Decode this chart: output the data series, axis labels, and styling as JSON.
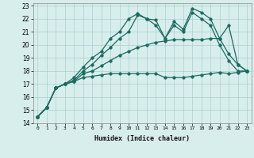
{
  "xlabel": "Humidex (Indice chaleur)",
  "xlim": [
    -0.5,
    23.5
  ],
  "ylim": [
    14,
    23.2
  ],
  "xticks": [
    0,
    1,
    2,
    3,
    4,
    5,
    6,
    7,
    8,
    9,
    10,
    11,
    12,
    13,
    14,
    15,
    16,
    17,
    18,
    19,
    20,
    21,
    22,
    23
  ],
  "yticks": [
    14,
    15,
    16,
    17,
    18,
    19,
    20,
    21,
    22,
    23
  ],
  "bg_color": "#d8eeed",
  "line_color": "#1a6b5e",
  "grid_color": "#aacfcc",
  "series": [
    {
      "x": [
        0,
        1,
        2,
        3,
        4,
        5,
        6,
        7,
        8,
        9,
        10,
        11,
        12,
        13,
        14,
        15,
        16,
        17,
        18,
        19,
        20,
        21,
        22,
        23
      ],
      "y": [
        14.5,
        15.2,
        16.7,
        17.0,
        17.5,
        18.3,
        19.0,
        19.5,
        20.5,
        21.0,
        22.0,
        22.4,
        22.0,
        21.9,
        20.5,
        21.8,
        21.2,
        22.8,
        22.5,
        22.0,
        20.5,
        21.5,
        18.5,
        18.0
      ],
      "marker": "o",
      "markersize": 2.5,
      "linestyle": "-",
      "linewidth": 0.9
    },
    {
      "x": [
        0,
        1,
        2,
        3,
        4,
        5,
        6,
        7,
        8,
        9,
        10,
        11,
        12,
        13,
        14,
        15,
        16,
        17,
        18,
        19,
        20,
        21,
        22,
        23
      ],
      "y": [
        14.5,
        15.2,
        16.7,
        17.0,
        17.3,
        18.0,
        18.5,
        19.2,
        19.8,
        20.5,
        21.0,
        22.3,
        22.0,
        21.5,
        20.5,
        21.5,
        21.0,
        22.5,
        22.0,
        21.5,
        20.0,
        18.8,
        18.0,
        18.0
      ],
      "marker": "o",
      "markersize": 2.5,
      "linestyle": "-",
      "linewidth": 0.9
    },
    {
      "x": [
        0,
        1,
        2,
        3,
        4,
        5,
        6,
        7,
        8,
        9,
        10,
        11,
        12,
        13,
        14,
        15,
        16,
        17,
        18,
        19,
        20,
        21,
        22,
        23
      ],
      "y": [
        14.5,
        15.2,
        16.7,
        17.0,
        17.2,
        17.8,
        18.0,
        18.4,
        18.8,
        19.2,
        19.5,
        19.8,
        20.0,
        20.2,
        20.3,
        20.4,
        20.4,
        20.4,
        20.4,
        20.5,
        20.5,
        19.3,
        18.5,
        18.0
      ],
      "marker": "o",
      "markersize": 2.5,
      "linestyle": "-",
      "linewidth": 0.9
    },
    {
      "x": [
        0,
        1,
        2,
        3,
        4,
        5,
        6,
        7,
        8,
        9,
        10,
        11,
        12,
        13,
        14,
        15,
        16,
        17,
        18,
        19,
        20,
        21,
        22,
        23
      ],
      "y": [
        14.5,
        15.2,
        16.7,
        17.0,
        17.2,
        17.5,
        17.6,
        17.7,
        17.8,
        17.8,
        17.8,
        17.8,
        17.8,
        17.8,
        17.5,
        17.5,
        17.5,
        17.6,
        17.7,
        17.8,
        17.9,
        17.8,
        17.9,
        18.0
      ],
      "marker": "o",
      "markersize": 2.5,
      "linestyle": "-",
      "linewidth": 0.9
    }
  ]
}
